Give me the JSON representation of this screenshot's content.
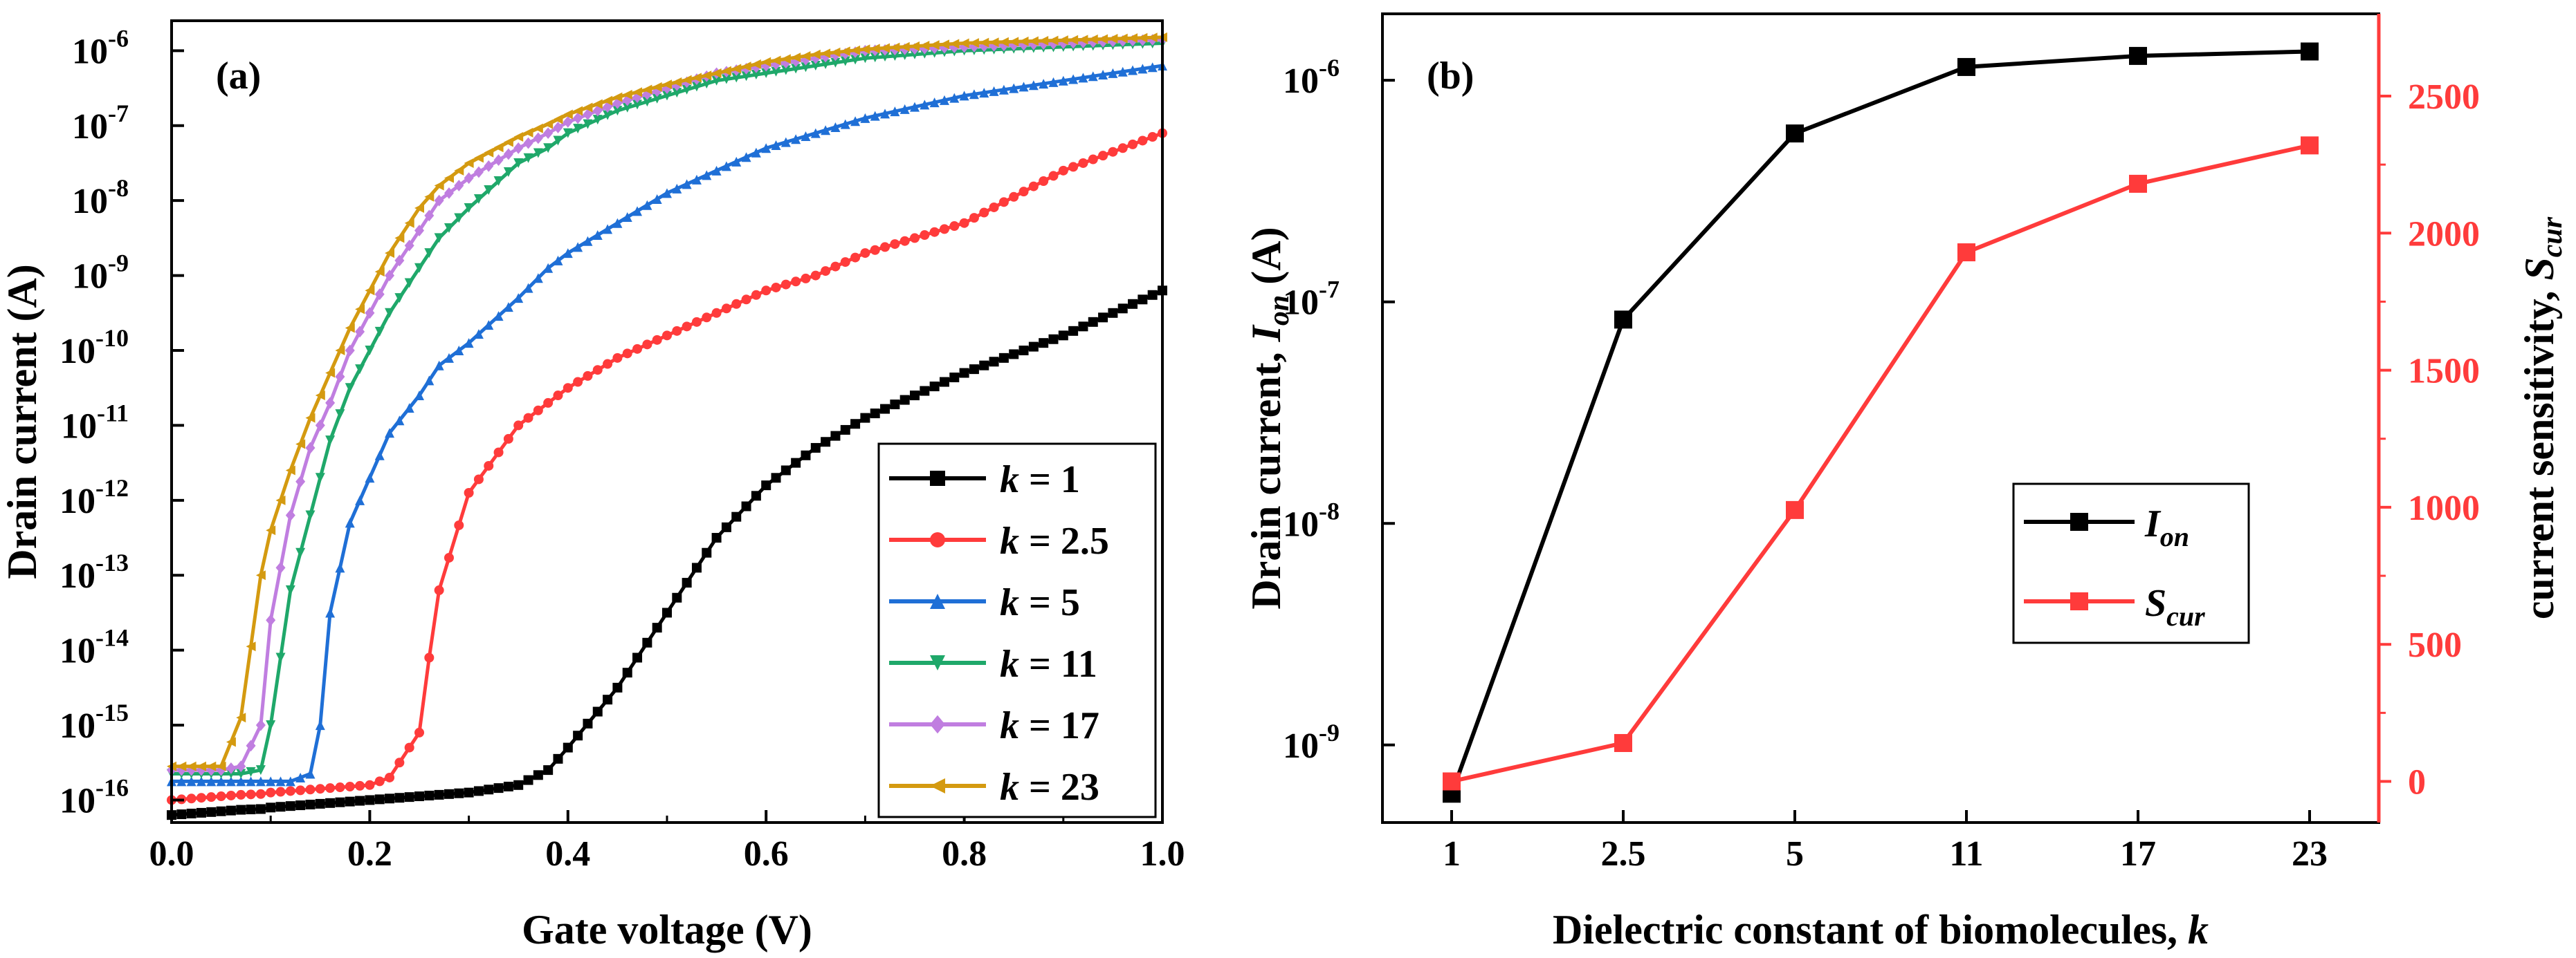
{
  "chart_data": [
    {
      "type": "line",
      "panel_label": "(a)",
      "xlabel": "Gate voltage (V)",
      "ylabel": "Drain current (A)",
      "yscale": "log",
      "xlim": [
        0.0,
        1.0
      ],
      "ylim_exponent": [
        -16.3,
        -5.6
      ],
      "xticks": [
        "0.0",
        "0.2",
        "0.4",
        "0.6",
        "0.8",
        "1.0"
      ],
      "yticks": [
        {
          "base": "10",
          "exp": "-6"
        },
        {
          "base": "10",
          "exp": "-7"
        },
        {
          "base": "10",
          "exp": "-8"
        },
        {
          "base": "10",
          "exp": "-9"
        },
        {
          "base": "10",
          "exp": "-10"
        },
        {
          "base": "10",
          "exp": "-11"
        },
        {
          "base": "10",
          "exp": "-12"
        },
        {
          "base": "10",
          "exp": "-13"
        },
        {
          "base": "10",
          "exp": "-14"
        },
        {
          "base": "10",
          "exp": "-15"
        },
        {
          "base": "10",
          "exp": "-16"
        }
      ],
      "legend_position": "bottom-right",
      "x": [
        0.0,
        0.05,
        0.07,
        0.09,
        0.1,
        0.12,
        0.14,
        0.15,
        0.16,
        0.18,
        0.2,
        0.22,
        0.25,
        0.26,
        0.27,
        0.3,
        0.35,
        0.38,
        0.4,
        0.45,
        0.5,
        0.55,
        0.6,
        0.65,
        0.7,
        0.8,
        0.9,
        1.0
      ],
      "series": [
        {
          "legend_k": "k",
          "legend_eq": " = 1",
          "color": "#000000",
          "marker": "square",
          "log10_values": [
            -16.2,
            -16.15,
            -16.13,
            -16.12,
            -16.1,
            -16.08,
            -16.06,
            -16.05,
            -16.04,
            -16.02,
            -16.0,
            -15.98,
            -15.95,
            -15.94,
            -15.93,
            -15.9,
            -15.8,
            -15.6,
            -15.3,
            -14.5,
            -13.5,
            -12.5,
            -11.8,
            -11.3,
            -10.9,
            -10.3,
            -9.8,
            -9.2
          ]
        },
        {
          "legend_k": "k",
          "legend_eq": " = 2.5",
          "color": "#ff3b3b",
          "marker": "circle",
          "log10_values": [
            -16.0,
            -15.95,
            -15.93,
            -15.92,
            -15.9,
            -15.88,
            -15.86,
            -15.85,
            -15.84,
            -15.82,
            -15.8,
            -15.7,
            -15.1,
            -14.1,
            -13.2,
            -11.9,
            -11.0,
            -10.7,
            -10.5,
            -10.1,
            -9.8,
            -9.5,
            -9.2,
            -9.0,
            -8.7,
            -8.3,
            -7.6,
            -7.1
          ]
        },
        {
          "legend_k": "k",
          "legend_eq": " = 5",
          "color": "#1f6fd6",
          "marker": "triangle-up",
          "log10_values": [
            -15.75,
            -15.75,
            -15.75,
            -15.75,
            -15.75,
            -15.75,
            -15.65,
            -15.0,
            -13.5,
            -12.3,
            -11.7,
            -11.1,
            -10.6,
            -10.4,
            -10.2,
            -9.9,
            -9.3,
            -8.9,
            -8.7,
            -8.3,
            -7.9,
            -7.6,
            -7.3,
            -7.1,
            -6.9,
            -6.6,
            -6.4,
            -6.2
          ]
        },
        {
          "legend_k": "k",
          "legend_eq": " = 11",
          "color": "#1fa86a",
          "marker": "triangle-down",
          "log10_values": [
            -15.65,
            -15.65,
            -15.65,
            -15.6,
            -15.0,
            -13.2,
            -12.2,
            -11.7,
            -11.2,
            -10.5,
            -10.0,
            -9.5,
            -8.9,
            -8.7,
            -8.5,
            -8.1,
            -7.5,
            -7.3,
            -7.1,
            -6.8,
            -6.6,
            -6.4,
            -6.3,
            -6.2,
            -6.1,
            -6.0,
            -5.95,
            -5.9
          ]
        },
        {
          "legend_k": "k",
          "legend_eq": " = 17",
          "color": "#c07ee0",
          "marker": "diamond",
          "log10_values": [
            -15.6,
            -15.6,
            -15.55,
            -15.0,
            -13.6,
            -12.2,
            -11.3,
            -11.0,
            -10.7,
            -10.0,
            -9.5,
            -9.0,
            -8.4,
            -8.2,
            -8.0,
            -7.7,
            -7.3,
            -7.1,
            -6.95,
            -6.7,
            -6.5,
            -6.3,
            -6.2,
            -6.1,
            -6.0,
            -5.95,
            -5.9,
            -5.85
          ]
        },
        {
          "legend_k": "k",
          "legend_eq": " = 23",
          "color": "#d49a10",
          "marker": "triangle-left",
          "log10_values": [
            -15.55,
            -15.55,
            -14.9,
            -13.0,
            -12.4,
            -11.6,
            -10.9,
            -10.6,
            -10.3,
            -9.7,
            -9.2,
            -8.7,
            -8.1,
            -7.95,
            -7.8,
            -7.5,
            -7.15,
            -6.98,
            -6.85,
            -6.62,
            -6.45,
            -6.3,
            -6.15,
            -6.05,
            -5.98,
            -5.9,
            -5.86,
            -5.82
          ]
        }
      ]
    },
    {
      "type": "line",
      "panel_label": "(b)",
      "xlabel_prefix": "Dielectric constant of biomolecules, ",
      "xlabel_k": "k",
      "ylabel_left_prefix": "Drain current, ",
      "ylabel_left_sym": "I",
      "ylabel_left_sub": "on",
      "ylabel_left_suffix": " (A)",
      "ylabel_right_prefix": "current sensitivity, ",
      "ylabel_right_sym": "S",
      "ylabel_right_sub": "cur",
      "categories": [
        "1",
        "2.5",
        "5",
        "11",
        "17",
        "23"
      ],
      "left_yscale": "log",
      "left_ylim_exponent": [
        -9.35,
        -5.7
      ],
      "left_yticks": [
        {
          "base": "10",
          "exp": "-6"
        },
        {
          "base": "10",
          "exp": "-7"
        },
        {
          "base": "10",
          "exp": "-8"
        },
        {
          "base": "10",
          "exp": "-9"
        }
      ],
      "right_ylim": [
        -150,
        2800
      ],
      "right_yticks": [
        "0",
        "500",
        "1000",
        "1500",
        "2000",
        "2500"
      ],
      "legend_position": "center-right",
      "series": [
        {
          "name_sym": "I",
          "name_sub": "on",
          "axis": "left",
          "color": "#000000",
          "log10_values": [
            -9.22,
            -7.08,
            -6.24,
            -5.94,
            -5.89,
            -5.87
          ]
        },
        {
          "name_sym": "S",
          "name_sub": "cur",
          "axis": "right",
          "color": "#ff3b3b",
          "values": [
            0,
            140,
            990,
            1930,
            2180,
            2320
          ]
        }
      ]
    }
  ]
}
